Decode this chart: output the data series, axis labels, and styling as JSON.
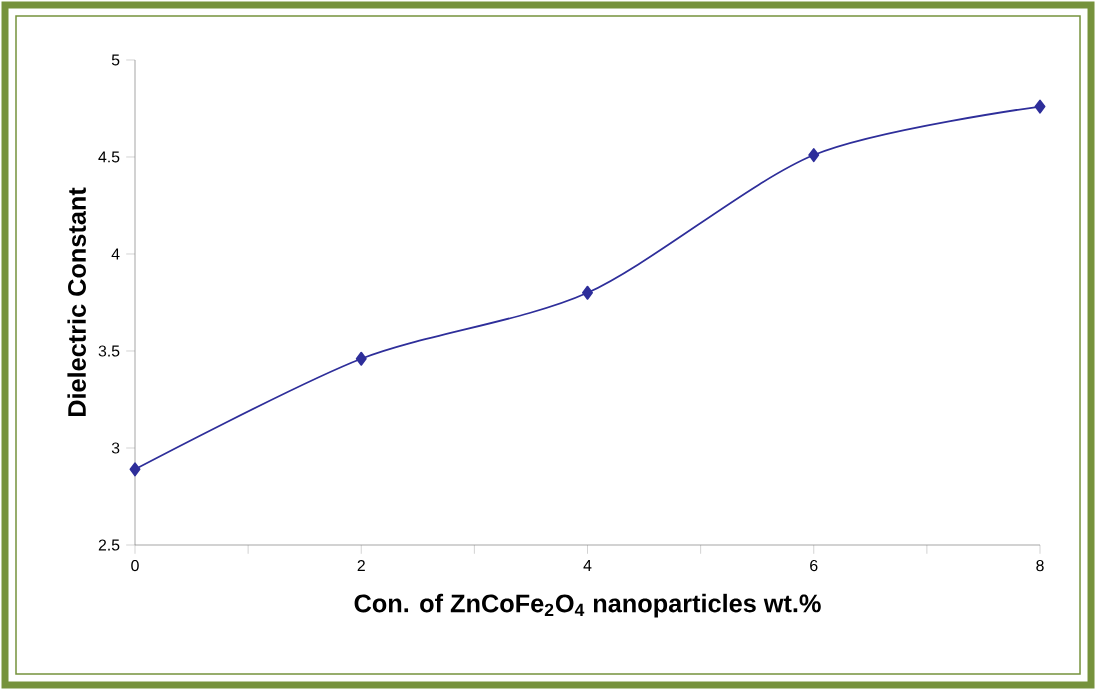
{
  "chart_data": {
    "type": "line",
    "xlabel": "Con. of ZnCoFe$_{2}$O$_{4}$ nanoparticles wt.%",
    "ylabel": "Dielectric Constant",
    "x": [
      0,
      2,
      4,
      6,
      8
    ],
    "series": [
      {
        "color": "#2e2e9a",
        "values": [
          2.89,
          3.46,
          3.8,
          4.51,
          4.76
        ]
      }
    ],
    "xlim": [
      0,
      8
    ],
    "ylim": [
      2.5,
      5
    ],
    "xticks": [
      0,
      {
        "value": 1,
        "label": null
      },
      2,
      {
        "value": 3,
        "label": null
      },
      4,
      {
        "value": 5,
        "label": null
      },
      6,
      {
        "value": 7,
        "label": null
      },
      8
    ],
    "yticks": [
      2.5,
      3,
      3.5,
      4,
      4.5,
      5
    ],
    "marker": "diamond",
    "line_style": "solid",
    "grid": false
  }
}
